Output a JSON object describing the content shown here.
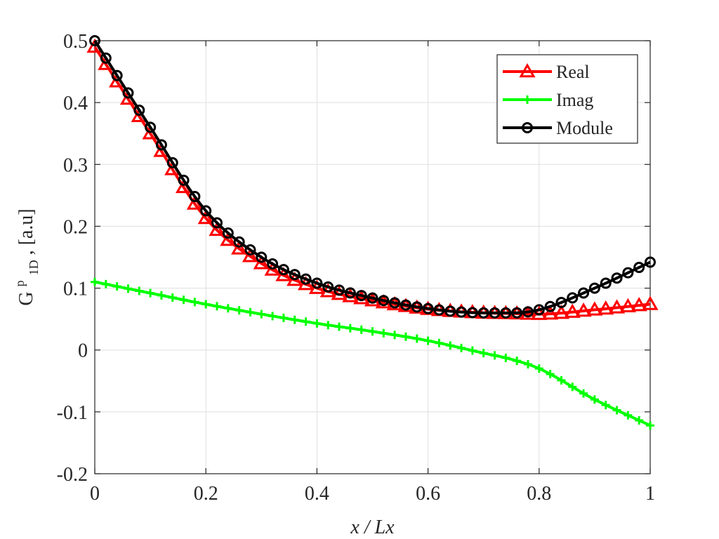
{
  "chart_data": {
    "type": "line",
    "title": "",
    "xlabel": "x / Lx",
    "ylabel": {
      "base": "G",
      "sup": "p",
      "sub": "1D",
      "suffix": ", [a.u]"
    },
    "xlim": [
      0,
      1
    ],
    "ylim": [
      -0.2,
      0.5
    ],
    "xticks": [
      0,
      0.2,
      0.4,
      0.6,
      0.8,
      1
    ],
    "xtick_labels": [
      "0",
      "0.2",
      "0.4",
      "0.6",
      "0.8",
      "1"
    ],
    "yticks": [
      -0.2,
      -0.1,
      0,
      0.1,
      0.2,
      0.3,
      0.4,
      0.5
    ],
    "ytick_labels": [
      "-0.2",
      "-0.1",
      "0",
      "0.1",
      "0.2",
      "0.3",
      "0.4",
      "0.5"
    ],
    "grid": true,
    "legend_position": "top-right",
    "x": [
      0,
      0.1,
      0.2,
      0.3,
      0.4,
      0.5,
      0.6,
      0.7,
      0.75,
      0.8,
      0.9,
      1.0
    ],
    "series": [
      {
        "name": "Real",
        "color": "#ff0000",
        "marker": "triangle",
        "values": [
          0.49,
          0.35,
          0.213,
          0.14,
          0.1,
          0.08,
          0.066,
          0.06,
          0.059,
          0.058,
          0.065,
          0.074
        ]
      },
      {
        "name": "Imag",
        "color": "#00ff00",
        "marker": "plus",
        "values": [
          0.11,
          0.092,
          0.074,
          0.058,
          0.043,
          0.03,
          0.015,
          -0.005,
          -0.015,
          -0.03,
          -0.08,
          -0.122
        ]
      },
      {
        "name": "Module",
        "color": "#000000",
        "marker": "circle",
        "values": [
          0.5,
          0.36,
          0.225,
          0.15,
          0.108,
          0.084,
          0.067,
          0.06,
          0.06,
          0.065,
          0.1,
          0.142
        ]
      }
    ]
  }
}
